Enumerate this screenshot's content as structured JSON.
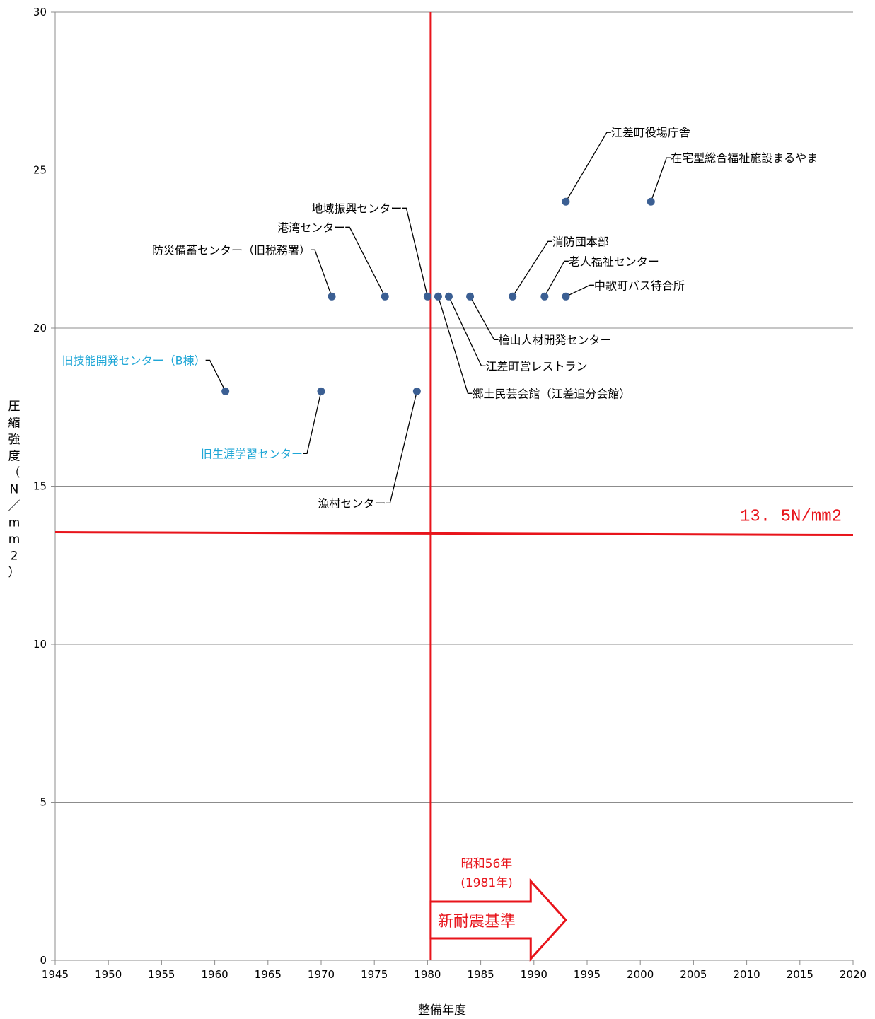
{
  "chart_data": {
    "type": "scatter",
    "xlabel": "整備年度",
    "ylabel_chars": [
      "圧",
      "縮",
      "強",
      "度",
      "（",
      "N",
      "／",
      "m",
      "m",
      "2",
      "）"
    ],
    "xlim": [
      1945,
      2020
    ],
    "ylim": [
      0,
      30
    ],
    "xticks": [
      1945,
      1950,
      1955,
      1960,
      1965,
      1970,
      1975,
      1980,
      1985,
      1990,
      1995,
      2000,
      2005,
      2010,
      2015,
      2020
    ],
    "yticks": [
      0,
      5,
      10,
      15,
      20,
      25,
      30
    ],
    "grid": "horizontal",
    "marker_color": "#3b5f93",
    "points": [
      {
        "x": 1961,
        "y": 18,
        "label": "旧技能開発センター（B棟）",
        "label_color": "#1ea6d6"
      },
      {
        "x": 1970,
        "y": 18,
        "label": "旧生涯学習センター",
        "label_color": "#1ea6d6"
      },
      {
        "x": 1971,
        "y": 21,
        "label": "防災備蓄センター（旧税務署）",
        "label_color": "#000000"
      },
      {
        "x": 1976,
        "y": 21,
        "label": "港湾センター",
        "label_color": "#000000"
      },
      {
        "x": 1979,
        "y": 18,
        "label": "漁村センター",
        "label_color": "#000000"
      },
      {
        "x": 1980,
        "y": 21,
        "label": "地域振興センター",
        "label_color": "#000000"
      },
      {
        "x": 1981,
        "y": 21,
        "label": "郷土民芸会館（江差追分会館）",
        "label_color": "#000000"
      },
      {
        "x": 1982,
        "y": 21,
        "label": "江差町営レストラン",
        "label_color": "#000000"
      },
      {
        "x": 1984,
        "y": 21,
        "label": "檜山人材開発センター",
        "label_color": "#000000"
      },
      {
        "x": 1988,
        "y": 21,
        "label": "消防団本部",
        "label_color": "#000000"
      },
      {
        "x": 1991,
        "y": 21,
        "label": "老人福祉センター",
        "label_color": "#000000"
      },
      {
        "x": 1993,
        "y": 21,
        "label": "中歌町バス待合所",
        "label_color": "#000000"
      },
      {
        "x": 1993,
        "y": 24,
        "label": "江差町役場庁舎",
        "label_color": "#000000"
      },
      {
        "x": 2001,
        "y": 24,
        "label": "在宅型総合福祉施設まるやま",
        "label_color": "#000000"
      }
    ],
    "reference_lines": {
      "vertical_x": 1980.3,
      "horizontal_y": 13.5,
      "horizontal_label": "13. 5N/mm2",
      "color": "#e8141b"
    },
    "annotation": {
      "era_line1": "昭和56年",
      "era_line2": "(1981年)",
      "arrow_text": "新耐震基準",
      "arrow_from_x": 1980.3,
      "arrow_to_x": 1993
    }
  }
}
